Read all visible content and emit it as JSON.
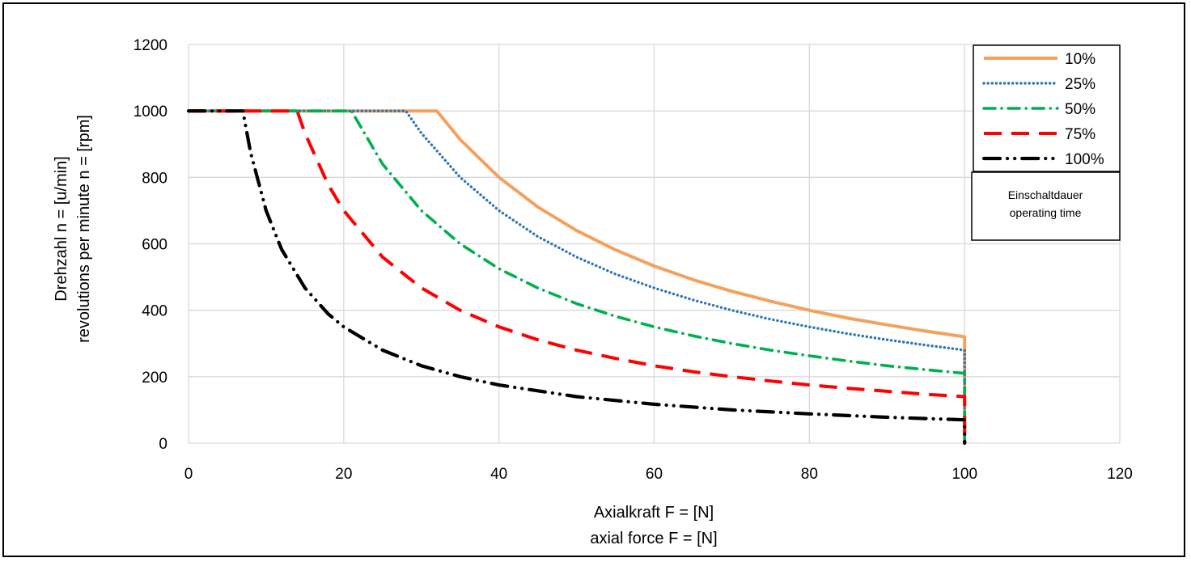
{
  "chart_data": {
    "type": "line",
    "xlabel": [
      "Axialkraft F = [N]",
      "axial force F = [N]"
    ],
    "ylabel": [
      "Drehzahl n = [u/min]",
      "revolutions per minute n = [rpm]"
    ],
    "xlim": [
      0,
      120
    ],
    "ylim": [
      0,
      1200
    ],
    "xticks": [
      0,
      20,
      40,
      60,
      80,
      100,
      120
    ],
    "yticks": [
      0,
      200,
      400,
      600,
      800,
      1000,
      1200
    ],
    "grid": true,
    "legend_position": "top-right",
    "legend_note": [
      "Einschaltdauer",
      "operating time"
    ],
    "series": [
      {
        "name": "10%",
        "color": "#F4A15D",
        "style": "solid",
        "x": [
          0,
          32,
          35,
          40,
          45,
          50,
          55,
          60,
          65,
          70,
          75,
          80,
          85,
          90,
          95,
          100,
          100
        ],
        "y": [
          1000,
          1000,
          914,
          800,
          711,
          640,
          582,
          533,
          492,
          457,
          427,
          400,
          376,
          356,
          337,
          320,
          0
        ]
      },
      {
        "name": "25%",
        "color": "#2E75B6",
        "style": "dotted",
        "x": [
          0,
          28,
          30,
          35,
          40,
          45,
          50,
          55,
          60,
          65,
          70,
          75,
          80,
          85,
          90,
          95,
          100,
          100
        ],
        "y": [
          1000,
          1000,
          933,
          800,
          700,
          622,
          560,
          509,
          467,
          431,
          400,
          373,
          350,
          329,
          311,
          295,
          280,
          0
        ]
      },
      {
        "name": "50%",
        "color": "#00B050",
        "style": "dashdot",
        "x": [
          0,
          21,
          25,
          30,
          35,
          40,
          45,
          50,
          55,
          60,
          65,
          70,
          75,
          80,
          85,
          90,
          95,
          100,
          100
        ],
        "y": [
          1000,
          1000,
          840,
          700,
          600,
          525,
          467,
          420,
          382,
          350,
          323,
          300,
          280,
          263,
          247,
          233,
          221,
          210,
          0
        ]
      },
      {
        "name": "75%",
        "color": "#FF0000",
        "style": "dashed",
        "x": [
          0,
          14,
          15,
          18,
          20,
          25,
          30,
          35,
          40,
          45,
          50,
          55,
          60,
          65,
          70,
          75,
          80,
          85,
          90,
          95,
          100,
          100
        ],
        "y": [
          1000,
          1000,
          933,
          778,
          700,
          560,
          467,
          400,
          350,
          311,
          280,
          255,
          233,
          215,
          200,
          187,
          175,
          165,
          156,
          147,
          140,
          0
        ]
      },
      {
        "name": "100%",
        "color": "#000000",
        "style": "dashdotdot",
        "x": [
          0,
          7,
          8,
          10,
          12,
          15,
          18,
          20,
          25,
          30,
          35,
          40,
          50,
          60,
          70,
          80,
          90,
          100,
          100
        ],
        "y": [
          1000,
          1000,
          875,
          700,
          583,
          467,
          389,
          350,
          280,
          233,
          200,
          175,
          140,
          117,
          100,
          88,
          78,
          70,
          0
        ]
      }
    ]
  }
}
